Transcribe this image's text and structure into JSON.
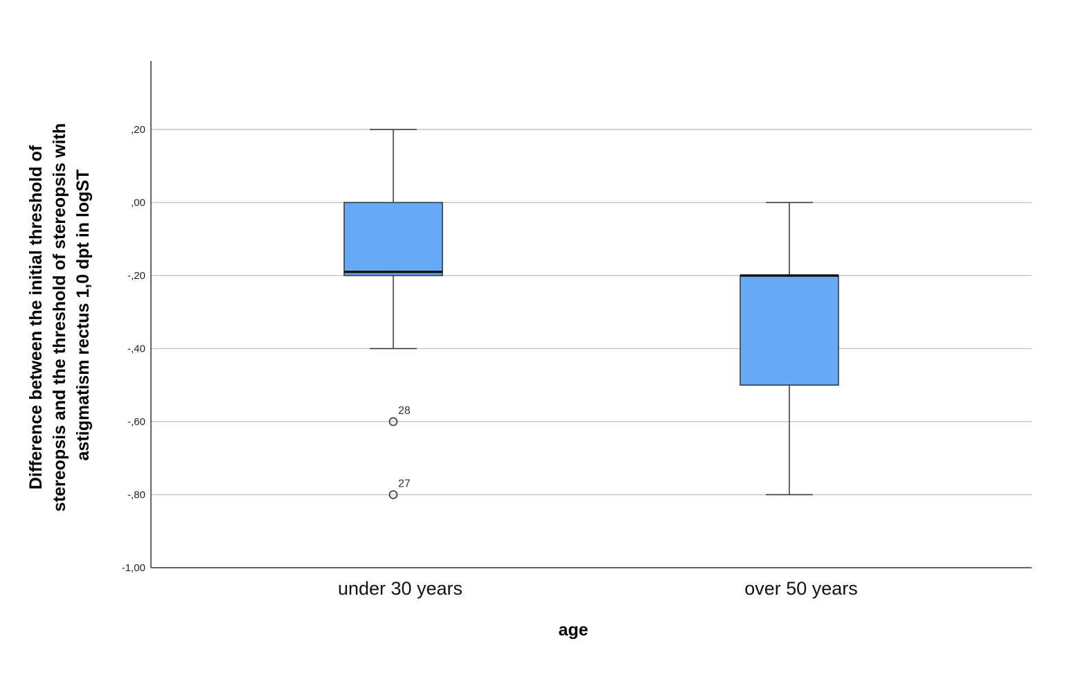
{
  "chart_data": {
    "type": "box",
    "xlabel": "age",
    "ylabel_lines": [
      "Difference between the initial threshold of",
      "stereopsis and the threshold of stereopsis with",
      "astigmatism rectus 1,0 dpt in logST"
    ],
    "ylim": [
      -1.0,
      0.38
    ],
    "yticks": [
      0.2,
      0.0,
      -0.2,
      -0.4,
      -0.6,
      -0.8,
      -1.0
    ],
    "ytick_labels": [
      ",20",
      ",00",
      "-,20",
      "-,40",
      "-,60",
      "-,80",
      "-1,00"
    ],
    "grid": true,
    "categories": [
      "under 30 years",
      "over 50 years"
    ],
    "boxes": [
      {
        "whisker_low": -0.4,
        "q1": -0.2,
        "median": -0.19,
        "q3": 0.0,
        "whisker_high": 0.2,
        "outliers": [
          {
            "value": -0.6,
            "label": "28"
          },
          {
            "value": -0.8,
            "label": "27"
          }
        ]
      },
      {
        "whisker_low": -0.8,
        "q1": -0.5,
        "median": -0.2,
        "q3": -0.2,
        "whisker_high": 0.0,
        "outliers": []
      }
    ],
    "colors": {
      "box_fill": "#66aaf5",
      "grid": "#c8c8c8",
      "axis": "#333333"
    }
  }
}
